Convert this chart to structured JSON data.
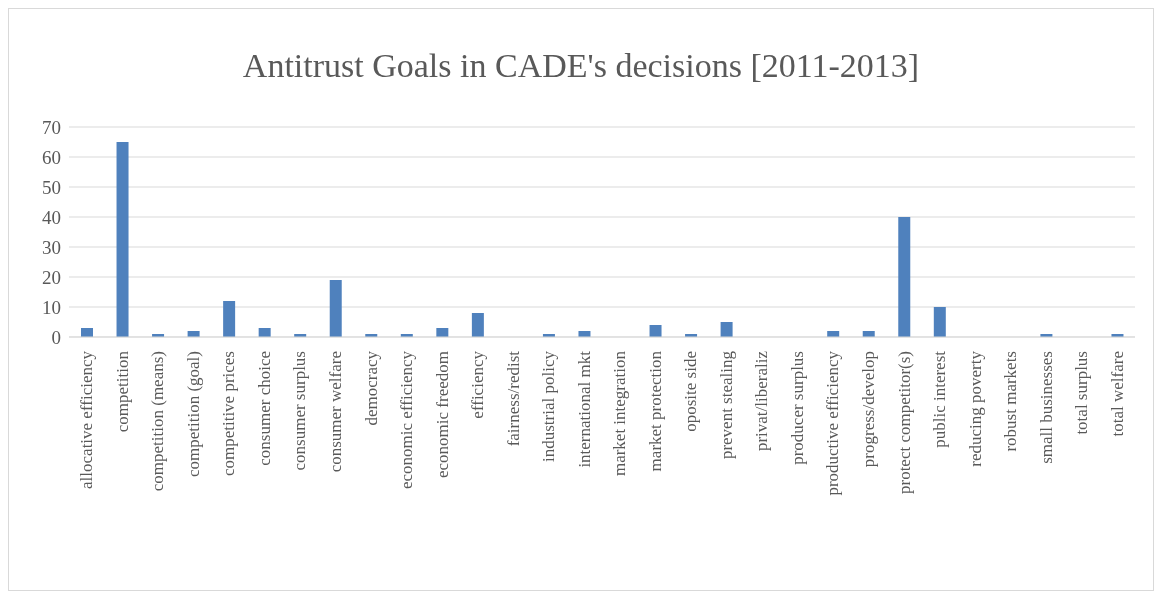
{
  "chart_data": {
    "type": "bar",
    "title": "Antitrust Goals in CADE's decisions [2011-2013]",
    "categories": [
      "allocative efficiency",
      "competition",
      "competition (means)",
      "competition (goal)",
      "competitive prices",
      "consumer choice",
      "consumer surplus",
      "consumer welfare",
      "democracy",
      "economic efficiency",
      "economic freedom",
      "efficiency",
      "fairness/redist",
      "industrial policy",
      "international mkt",
      "market integration",
      "market protection",
      "oposite side",
      "prevent stealing",
      "privat/liberaliz",
      "producer surplus",
      "productive efficiency",
      "progress/develop",
      "protect competitor(s)",
      "public interest",
      "reducing poverty",
      "robust markets",
      "small businesses",
      "total surplus",
      "total welfare"
    ],
    "values": [
      3,
      65,
      1,
      2,
      12,
      3,
      1,
      19,
      1,
      1,
      3,
      8,
      0,
      1,
      2,
      0,
      4,
      1,
      5,
      0,
      0,
      2,
      2,
      40,
      10,
      0,
      0,
      1,
      0,
      1
    ],
    "color": "#4f81bd",
    "ylim": [
      0,
      70
    ],
    "yticks": [
      0,
      10,
      20,
      30,
      40,
      50,
      60,
      70
    ],
    "grid": "y",
    "legend": false
  }
}
